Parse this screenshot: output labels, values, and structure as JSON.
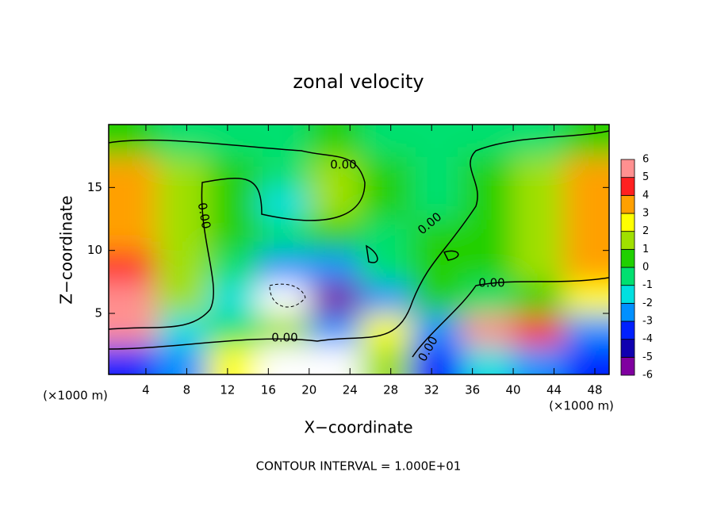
{
  "chart_data": {
    "type": "contour",
    "title": "zonal velocity",
    "xlabel": "X−coordinate",
    "ylabel": "Z−coordinate",
    "xunit": "(×1000 m)",
    "yunit": "(×1000 m)",
    "footer": "CONTOUR INTERVAL = 1.000E+01",
    "xlim": [
      0.35,
      49.4
    ],
    "ylim": [
      0.15,
      20
    ],
    "xticks": [
      4,
      8,
      12,
      16,
      20,
      24,
      28,
      32,
      36,
      40,
      44,
      48
    ],
    "yticks": [
      5,
      10,
      15
    ],
    "x": [
      2.5,
      7.5,
      12.5,
      17.5,
      22.5,
      27.5,
      32.5,
      37.5,
      42.5,
      47.5
    ],
    "y": [
      1.25,
      3.75,
      6.25,
      8.75,
      11.25,
      13.75,
      16.25,
      18.75
    ],
    "z": [
      [
        -4,
        -3,
        2,
        7,
        7,
        1,
        -4,
        -2,
        -3,
        -4
      ],
      [
        5,
        -2,
        -1,
        1,
        -3,
        2,
        -3,
        5,
        4,
        -3
      ],
      [
        5,
        1,
        -2,
        -7,
        -6,
        -3,
        0,
        -1,
        0,
        2
      ],
      [
        4,
        1,
        -1,
        -3,
        -3,
        -1,
        0,
        0,
        1,
        3
      ],
      [
        3,
        1,
        0,
        -1,
        0.5,
        -0.5,
        0,
        0.5,
        1,
        3
      ],
      [
        3,
        1,
        0,
        -1.5,
        1.5,
        0,
        -0.5,
        0,
        1,
        3
      ],
      [
        3,
        1.5,
        0.5,
        -1,
        1,
        0,
        -1,
        0,
        1,
        3
      ],
      [
        0,
        -0.5,
        -0.5,
        -1,
        0,
        -1,
        -1,
        -1,
        -0.5,
        0
      ]
    ],
    "colorbar": {
      "ticks": [
        -6,
        -5,
        -4,
        -3,
        -2,
        -1,
        0,
        1,
        2,
        3,
        4,
        5,
        6
      ],
      "colors": [
        "#8000a0",
        "#1000b0",
        "#0020ff",
        "#0090ff",
        "#00e0e0",
        "#00e070",
        "#20d000",
        "#a0e000",
        "#ffff00",
        "#ffa000",
        "#ff2020",
        "#ff9090"
      ]
    },
    "contour_labels": [
      "0.00",
      "0.00",
      "0.00",
      "0.00",
      "0.00",
      "0.00"
    ]
  }
}
